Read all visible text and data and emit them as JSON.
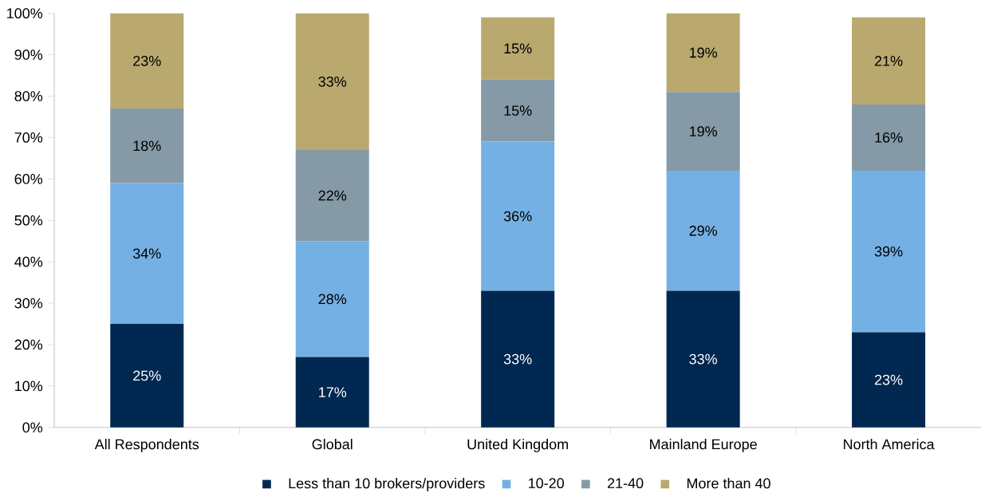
{
  "chart_data": {
    "type": "bar",
    "stacked": true,
    "categories": [
      "All Respondents",
      "Global",
      "United Kingdom",
      "Mainland Europe",
      "North America"
    ],
    "series": [
      {
        "name": "Less than 10 brokers/providers",
        "color": "#002850",
        "values": [
          25,
          17,
          33,
          33,
          23
        ],
        "value_labels": [
          "25%",
          "17%",
          "33%",
          "33%",
          "23%"
        ]
      },
      {
        "name": "10-20",
        "color": "#74b0e3",
        "values": [
          34,
          28,
          36,
          29,
          39
        ],
        "value_labels": [
          "34%",
          "28%",
          "36%",
          "29%",
          "39%"
        ]
      },
      {
        "name": "21-40",
        "color": "#8599a7",
        "values": [
          18,
          22,
          15,
          19,
          16
        ],
        "value_labels": [
          "18%",
          "22%",
          "15%",
          "19%",
          "16%"
        ]
      },
      {
        "name": "More than 40",
        "color": "#b9a96e",
        "values": [
          23,
          33,
          15,
          19,
          21
        ],
        "value_labels": [
          "23%",
          "33%",
          "15%",
          "19%",
          "21%"
        ]
      }
    ],
    "ylim": [
      0,
      100
    ],
    "yticks": [
      {
        "value": 0,
        "label": "0%"
      },
      {
        "value": 10,
        "label": "10%"
      },
      {
        "value": 20,
        "label": "20%"
      },
      {
        "value": 30,
        "label": "30%"
      },
      {
        "value": 40,
        "label": "40%"
      },
      {
        "value": 50,
        "label": "50%"
      },
      {
        "value": 60,
        "label": "60%"
      },
      {
        "value": 70,
        "label": "70%"
      },
      {
        "value": 80,
        "label": "80%"
      },
      {
        "value": 90,
        "label": "90%"
      },
      {
        "value": 100,
        "label": "100%"
      }
    ],
    "grid": false,
    "legend": "bottom"
  }
}
